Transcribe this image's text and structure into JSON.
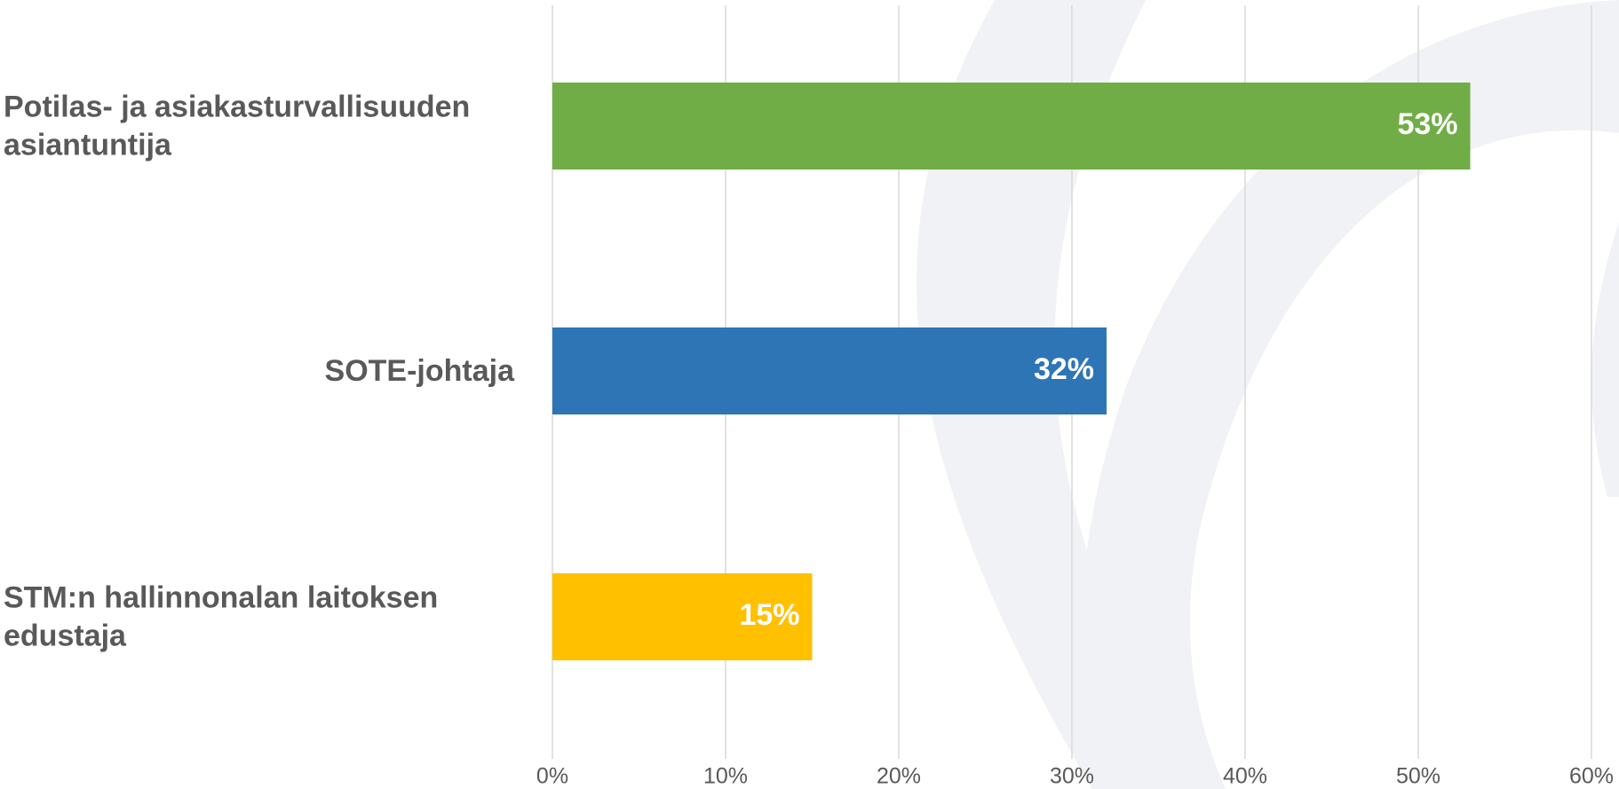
{
  "chart_data": {
    "type": "bar",
    "orientation": "horizontal",
    "categories": [
      "Potilas- ja asiakasturvallisuuden asiantuntija",
      "SOTE-johtaja",
      "STM:n hallinnonalan laitoksen edustaja"
    ],
    "values": [
      53,
      32,
      15
    ],
    "value_labels": [
      "53%",
      "32%",
      "15%"
    ],
    "colors": [
      "#70ad47",
      "#2e75b6",
      "#ffc000"
    ],
    "xlim": [
      0,
      60
    ],
    "xticks": [
      {
        "value": 0,
        "label": "0%"
      },
      {
        "value": 10,
        "label": "10%"
      },
      {
        "value": 20,
        "label": "20%"
      },
      {
        "value": 30,
        "label": "30%"
      },
      {
        "value": 40,
        "label": "40%"
      },
      {
        "value": 50,
        "label": "50%"
      },
      {
        "value": 60,
        "label": "60%"
      }
    ],
    "grid": true
  }
}
